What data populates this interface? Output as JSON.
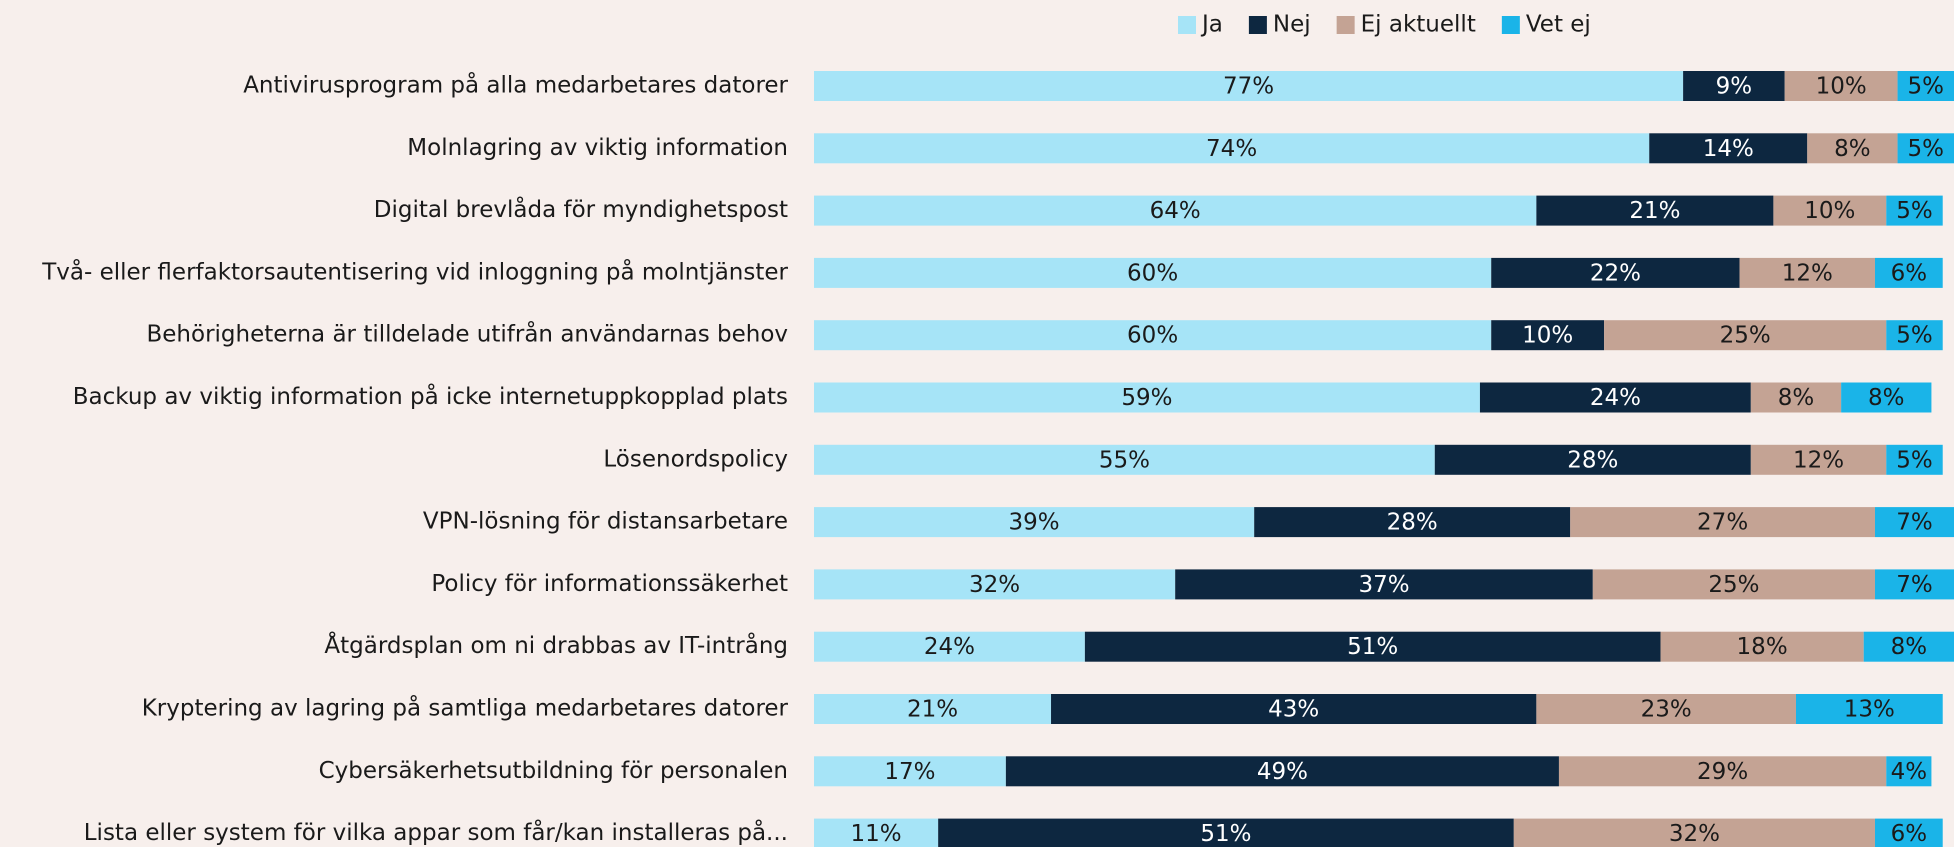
{
  "chart_data": {
    "type": "stacked_barh",
    "categories": [
      "Antivirusprogram på alla medarbetares datorer",
      "Molnlagring av viktig information",
      "Digital brevlåda för myndighetspost",
      "Två- eller flerfaktorsautentisering vid inloggning på molntjänster",
      "Behörigheterna är tilldelade utifrån användarnas behov",
      "Backup av viktig information på icke internetuppkopplad plats",
      "Lösenordspolicy",
      "VPN-lösning för distansarbetare",
      "Policy för informationssäkerhet",
      "Åtgärdsplan om ni drabbas av IT-intrång",
      "Kryptering av lagring på samtliga medarbetares datorer",
      "Cybersäkerhetsutbildning för personalen",
      "Lista eller system för vilka appar som får/kan installeras på..."
    ],
    "series": [
      {
        "name": "Ja",
        "color": "#a6e4f7",
        "values": [
          77,
          74,
          64,
          60,
          60,
          59,
          55,
          39,
          32,
          24,
          21,
          17,
          11
        ],
        "value_labels": [
          "77%",
          "74%",
          "64%",
          "60%",
          "60%",
          "59%",
          "55%",
          "39%",
          "32%",
          "24%",
          "21%",
          "17%",
          "11%"
        ]
      },
      {
        "name": "Nej",
        "color": "#0d2740",
        "values": [
          9,
          14,
          21,
          22,
          10,
          24,
          28,
          28,
          37,
          51,
          43,
          49,
          51
        ],
        "value_labels": [
          "9%",
          "14%",
          "21%",
          "22%",
          "10%",
          "24%",
          "28%",
          "28%",
          "37%",
          "51%",
          "43%",
          "49%",
          "51%"
        ]
      },
      {
        "name": "Ej aktuellt",
        "color": "#c4a394",
        "values": [
          10,
          8,
          10,
          12,
          25,
          8,
          12,
          27,
          25,
          18,
          23,
          29,
          32
        ],
        "value_labels": [
          "10%",
          "8%",
          "10%",
          "12%",
          "25%",
          "8%",
          "12%",
          "27%",
          "25%",
          "18%",
          "23%",
          "29%",
          "32%"
        ]
      },
      {
        "name": "Vet ej",
        "color": "#1ab4e8",
        "values": [
          5,
          5,
          5,
          6,
          5,
          8,
          5,
          7,
          7,
          8,
          13,
          4,
          6
        ],
        "value_labels": [
          "5%",
          "5%",
          "5%",
          "6%",
          "5%",
          "8%",
          "5%",
          "7%",
          "7%",
          "8%",
          "13%",
          "4%",
          "6%"
        ]
      }
    ],
    "xlim": [
      0,
      101
    ],
    "legend": "top"
  }
}
